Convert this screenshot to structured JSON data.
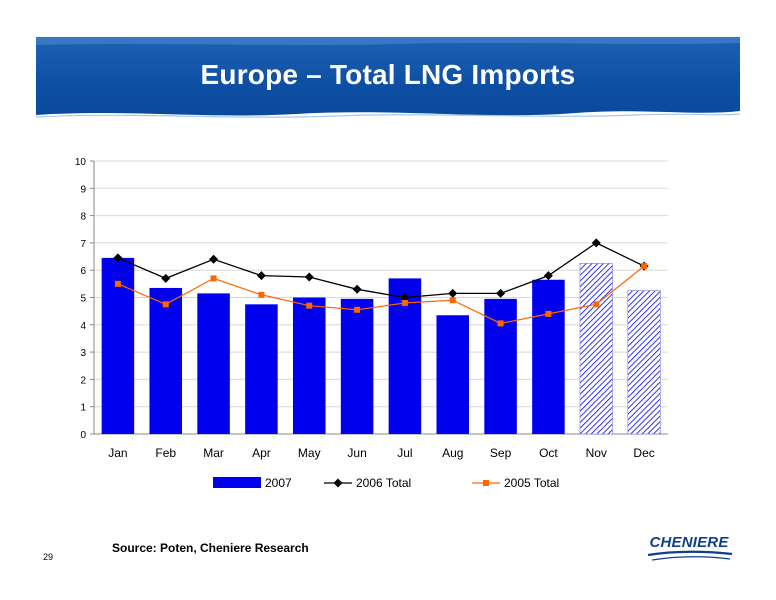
{
  "header": {
    "title": "Europe – Total LNG Imports"
  },
  "footer": {
    "source": "Source: Poten, Cheniere Research",
    "page_number": "29",
    "logo_text": "CHENIERE"
  },
  "colors": {
    "banner": "#0d4fa3",
    "bar_2007": "#0000ee",
    "line_2006": "#000000",
    "line_2005": "#ff6600"
  },
  "chart_data": {
    "type": "bar",
    "categories": [
      "Jan",
      "Feb",
      "Mar",
      "Apr",
      "May",
      "Jun",
      "Jul",
      "Aug",
      "Sep",
      "Oct",
      "Nov",
      "Dec"
    ],
    "ylim": [
      0,
      10
    ],
    "yticks": [
      0,
      1,
      2,
      3,
      4,
      5,
      6,
      7,
      8,
      9,
      10
    ],
    "grid": true,
    "legend_position": "bottom",
    "series": [
      {
        "name": "2007",
        "kind": "bar",
        "values": [
          6.45,
          5.35,
          5.15,
          4.75,
          5.0,
          4.95,
          5.7,
          4.35,
          4.95,
          5.65,
          6.25,
          5.25
        ],
        "estimated_from": 10
      },
      {
        "name": "2006 Total",
        "kind": "line",
        "marker": "diamond",
        "values": [
          6.45,
          5.7,
          6.4,
          5.8,
          5.75,
          5.3,
          5.0,
          5.15,
          5.15,
          5.8,
          7.0,
          6.15
        ]
      },
      {
        "name": "2005 Total",
        "kind": "line",
        "marker": "square",
        "values": [
          5.5,
          4.75,
          5.7,
          5.1,
          4.7,
          4.55,
          4.8,
          4.9,
          4.05,
          4.4,
          4.75,
          6.15
        ]
      }
    ]
  }
}
